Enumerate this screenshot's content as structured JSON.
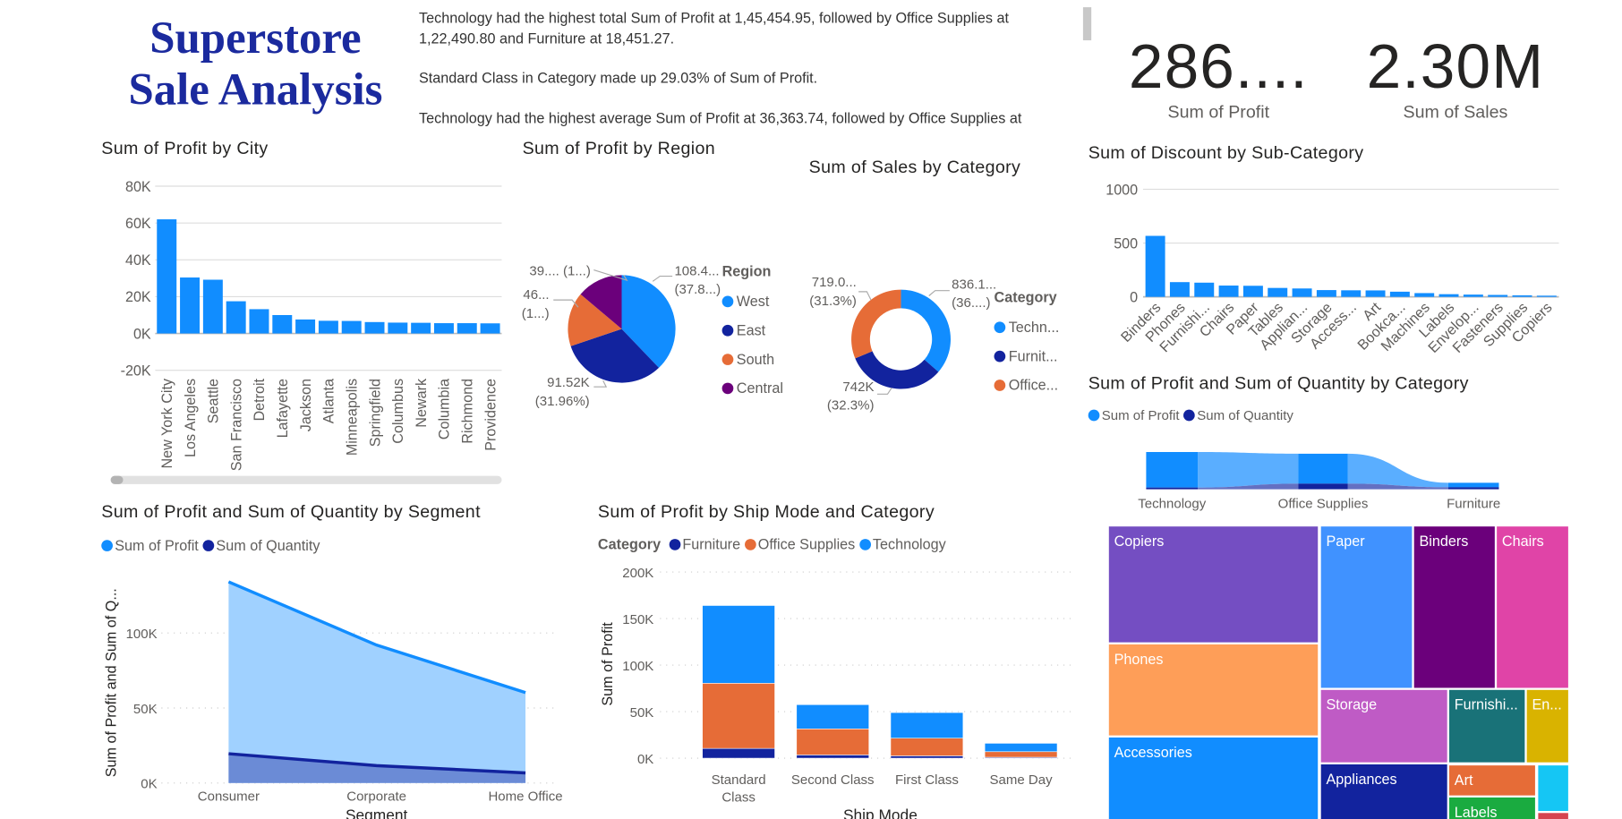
{
  "header": {
    "title_line1": "Superstore",
    "title_line2": "Sale Analysis",
    "narrative": [
      "Technology had the highest total Sum of Profit at 1,45,454.95, followed by Office Supplies at 1,22,490.80 and Furniture at 18,451.27.",
      "Standard Class in Category  made up 29.03% of Sum of Profit.",
      "Technology had the highest average Sum of Profit at 36,363.74, followed by Office Supplies at"
    ]
  },
  "kpis": [
    {
      "value": "286....",
      "label": "Sum of Profit"
    },
    {
      "value": "2.30M",
      "label": "Sum of Sales"
    }
  ],
  "colors": {
    "accent": "#118DFF",
    "dark_blue": "#12239E",
    "orange": "#E66C37",
    "purple": "#6B007B",
    "area_light": "#A0D1FF",
    "area_dark": "#6B8BD6",
    "ribbon_light": "#5AAEFF"
  },
  "chart_data": [
    {
      "id": "city",
      "type": "bar",
      "title": "Sum of Profit by City",
      "categories": [
        "New York City",
        "Los Angeles",
        "Seattle",
        "San Francisco",
        "Detroit",
        "Lafayette",
        "Jackson",
        "Atlanta",
        "Minneapolis",
        "Springfield",
        "Columbus",
        "Newark",
        "Columbia",
        "Richmond",
        "Providence"
      ],
      "values": [
        62000,
        30400,
        29200,
        17500,
        13200,
        10000,
        7600,
        6900,
        6800,
        6200,
        5900,
        5800,
        5600,
        5600,
        5500
      ],
      "yticks": [
        "80K",
        "60K",
        "40K",
        "20K",
        "0K",
        "-20K"
      ],
      "ylim": [
        -20000,
        80000
      ],
      "grid": true
    },
    {
      "id": "region",
      "type": "pie",
      "title": "Sum of Profit by Region",
      "legend_title": "Region",
      "categories": [
        "West",
        "East",
        "South",
        "Central"
      ],
      "values": [
        108418,
        91523,
        46749,
        39706
      ],
      "colors": [
        "#118DFF",
        "#12239E",
        "#E66C37",
        "#6B007B"
      ],
      "data_labels": [
        [
          "108.4...",
          "(37.8...)"
        ],
        [
          "91.52K",
          "(31.96%)"
        ],
        [
          "46...",
          "(1...)"
        ],
        [
          "39.... (1...)",
          ""
        ]
      ],
      "legend_placement": "right"
    },
    {
      "id": "category_sales",
      "type": "pie",
      "donut": true,
      "title": "Sum of Sales by Category",
      "legend_title": "Category",
      "categories": [
        "Techn...",
        "Furnit...",
        "Office..."
      ],
      "values": [
        836100,
        742000,
        719000
      ],
      "colors": [
        "#118DFF",
        "#12239E",
        "#E66C37"
      ],
      "data_labels": [
        [
          "836.1...",
          "(36....)"
        ],
        [
          "742K",
          "(32.3%)"
        ],
        [
          "719.0...",
          "(31.3%)"
        ]
      ],
      "legend_placement": "right"
    },
    {
      "id": "discount",
      "type": "bar",
      "title": "Sum of Discount by Sub-Category",
      "categories": [
        "Binders",
        "Phones",
        "Furnishi...",
        "Chairs",
        "Paper",
        "Tables",
        "Applian...",
        "Storage",
        "Access...",
        "Art",
        "Bookca...",
        "Machines",
        "Labels",
        "Envelop...",
        "Fasteners",
        "Supplies",
        "Copiers"
      ],
      "values": [
        567,
        137,
        132,
        105,
        103,
        83,
        78,
        63,
        61,
        60,
        48,
        35,
        25,
        21,
        18,
        14,
        11
      ],
      "yticks": [
        "1000",
        "500",
        "0"
      ],
      "ylim": [
        0,
        1000
      ],
      "grid": true
    },
    {
      "id": "ribbon",
      "type": "bar",
      "subtype": "ribbon",
      "title": "Sum of Profit and Sum of Quantity by Category",
      "categories": [
        "Technology",
        "Office Supplies",
        "Furniture"
      ],
      "series": [
        {
          "name": "Sum of Profit",
          "values": [
            145454.95,
            122490.8,
            18451.27
          ],
          "color": "#118DFF"
        },
        {
          "name": "Sum of Quantity",
          "values": [
            6939,
            22906,
            8028
          ],
          "color": "#12239E"
        }
      ],
      "legend_placement": "top-left"
    },
    {
      "id": "segment",
      "type": "area",
      "title": "Sum of Profit and Sum of Quantity by Segment",
      "xlabel": "Segment",
      "ylabel": "Sum of Profit and Sum of Q...",
      "categories": [
        "Consumer",
        "Corporate",
        "Home Office"
      ],
      "series": [
        {
          "name": "Sum of Profit",
          "values": [
            134119,
            91979,
            60299
          ],
          "color": "#118DFF"
        },
        {
          "name": "Sum of Quantity",
          "values": [
            19521,
            11608,
            6744
          ],
          "color": "#12239E"
        }
      ],
      "yticks": [
        "100K",
        "50K",
        "0K"
      ],
      "ylim": [
        0,
        140000
      ],
      "grid": "dotted",
      "legend_placement": "top-left"
    },
    {
      "id": "shipmode",
      "type": "bar",
      "stacked": true,
      "title": "Sum of Profit by Ship Mode and Category",
      "xlabel": "Ship Mode",
      "ylabel": "Sum of Profit",
      "legend_title": "Category",
      "categories": [
        "Standard Class",
        "Second Class",
        "First Class",
        "Same Day"
      ],
      "series": [
        {
          "name": "Furniture",
          "values": [
            10500,
            3500,
            2500,
            1000
          ],
          "color": "#12239E"
        },
        {
          "name": "Office Supplies",
          "values": [
            70000,
            28000,
            19000,
            6000
          ],
          "color": "#E66C37"
        },
        {
          "name": "Technology",
          "values": [
            83500,
            26000,
            27500,
            9000
          ],
          "color": "#118DFF"
        }
      ],
      "yticks": [
        "200K",
        "150K",
        "100K",
        "50K",
        "0K"
      ],
      "ylim": [
        0,
        200000
      ],
      "grid": "dotted",
      "legend_placement": "top-left"
    }
  ],
  "treemap": {
    "items": [
      {
        "label": "Copiers",
        "color": "#744EC2"
      },
      {
        "label": "Phones",
        "color": "#FE9E58"
      },
      {
        "label": "Accessories",
        "color": "#118DFF"
      },
      {
        "label": "Paper",
        "color": "#4092FF"
      },
      {
        "label": "Binders",
        "color": "#6B007B"
      },
      {
        "label": "Chairs",
        "color": "#E044A7"
      },
      {
        "label": "Storage",
        "color": "#BF5BC5"
      },
      {
        "label": "Furnishi...",
        "color": "#197278"
      },
      {
        "label": "En...",
        "color": "#D9B300"
      },
      {
        "label": "Appliances",
        "color": "#12239E"
      },
      {
        "label": "Art",
        "color": "#E66C37"
      },
      {
        "label": "Labels",
        "color": "#1AAB40"
      },
      {
        "label": "",
        "color": "#15C6F4"
      },
      {
        "label": "",
        "color": "#D64550"
      }
    ]
  }
}
